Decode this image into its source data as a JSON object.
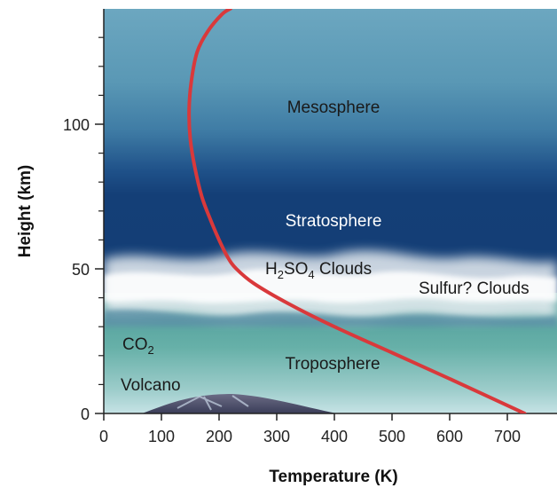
{
  "axes": {
    "xlabel": "Temperature (K)",
    "ylabel": "Height (km)",
    "x_ticks": [
      "0",
      "100",
      "200",
      "300",
      "400",
      "500",
      "600",
      "700"
    ],
    "y_ticks": [
      "0",
      "50",
      "100"
    ]
  },
  "layers": {
    "mesosphere": "Mesosphere",
    "stratosphere": "Stratosphere",
    "h2so4_clouds": {
      "h": "H",
      "sub2": "2",
      "so": "SO",
      "sub4": "4",
      "rest": " Clouds"
    },
    "sulfur_clouds": "Sulfur? Clouds",
    "troposphere": "Troposphere",
    "co2": {
      "co": "CO",
      "sub2": "2"
    },
    "volcano": "Volcano"
  },
  "colors": {
    "mesosphere_top": "#6aa6bf",
    "stratosphere": "#123f78",
    "troposphere": "#5ea9a3",
    "surface": "#bfe0e3",
    "profile_line": "#d9393b"
  },
  "chart_data": {
    "type": "line",
    "title": "",
    "xlabel": "Temperature (K)",
    "ylabel": "Height (km)",
    "xlim": [
      0,
      800
    ],
    "ylim": [
      0,
      140
    ],
    "series": [
      {
        "name": "",
        "x": [
          730,
          600,
          500,
          400,
          320,
          260,
          230,
          215,
          200,
          185,
          170,
          158,
          150,
          148,
          152,
          162,
          180,
          205,
          220
        ],
        "y": [
          0,
          12,
          21,
          30,
          38,
          45,
          50,
          54,
          60,
          67,
          75,
          85,
          95,
          105,
          115,
          125,
          132,
          138,
          140
        ]
      }
    ]
  }
}
